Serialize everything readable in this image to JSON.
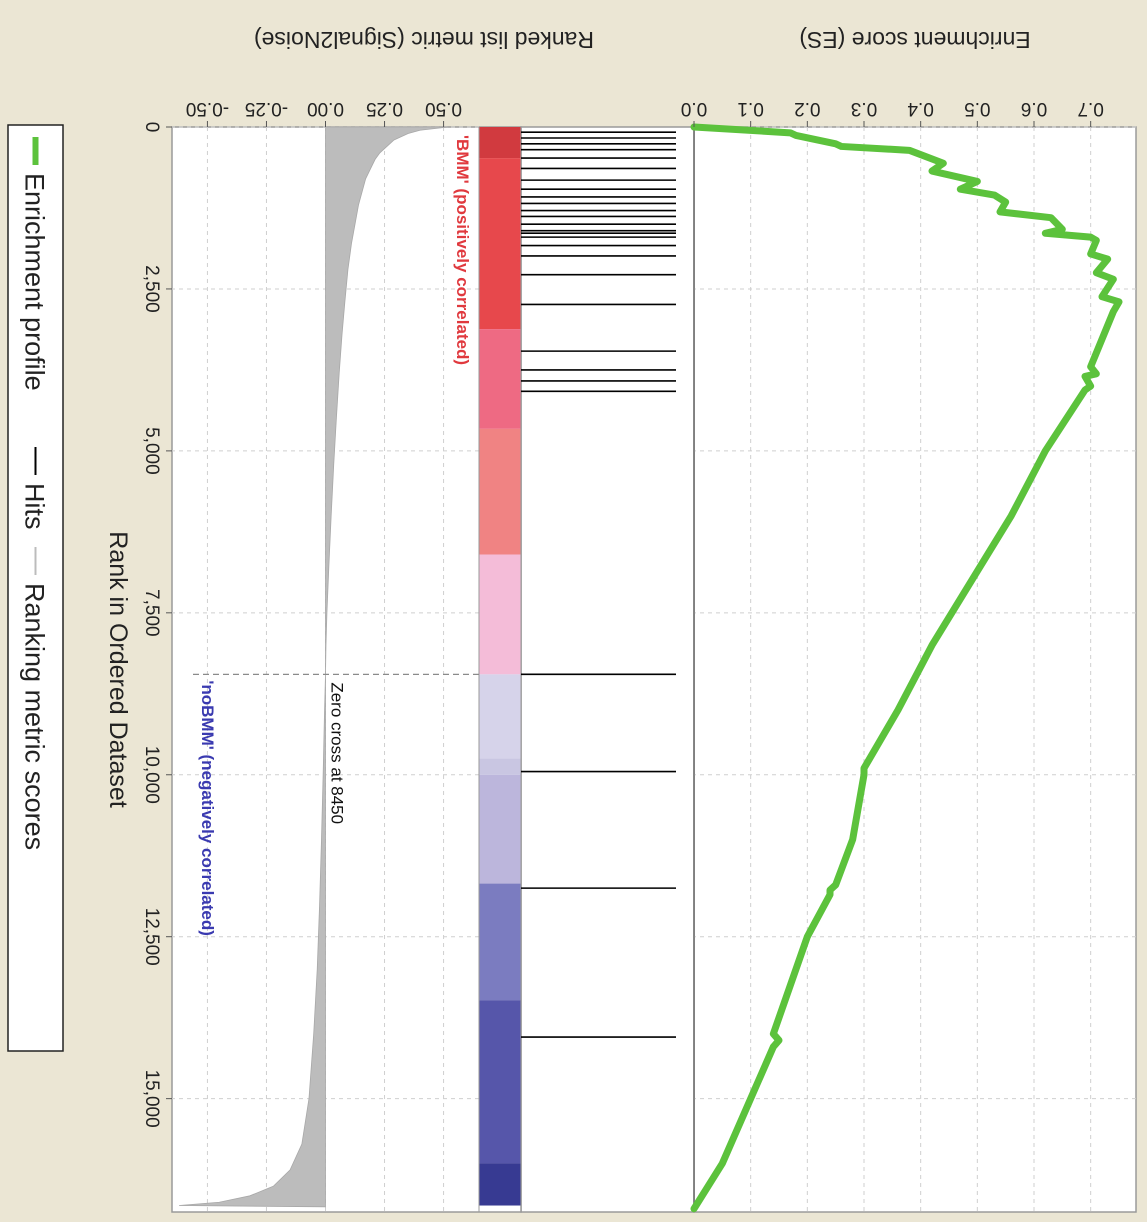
{
  "chart_data": {
    "type": "line",
    "x_label": "Rank in Ordered Dataset",
    "x_range": [
      0,
      16750
    ],
    "x_ticks": [
      0,
      2500,
      5000,
      7500,
      10000,
      12500,
      15000
    ],
    "x_tick_labels": [
      "0",
      "2,500",
      "5,000",
      "7,500",
      "10,000",
      "12,500",
      "15,000"
    ],
    "grid": true,
    "es_panel": {
      "ylabel": "Enrichment score (ES)",
      "ylim": [
        0,
        0.78
      ],
      "y_ticks": [
        0,
        0.1,
        0.2,
        0.3,
        0.4,
        0.5,
        0.6,
        0.7
      ],
      "y_tick_labels": [
        "0.0",
        "0.1",
        "0.2",
        "0.3",
        "0.4",
        "0.5",
        "0.6",
        "0.7"
      ],
      "series_name": "Enrichment profile",
      "color": "#5cc23c",
      "x": [
        0,
        90,
        130,
        260,
        300,
        360,
        560,
        680,
        840,
        960,
        1050,
        1160,
        1310,
        1400,
        1580,
        1640,
        1700,
        1750,
        1960,
        2040,
        2250,
        2350,
        2620,
        2700,
        2850,
        3700,
        3810,
        3850,
        4000,
        4060,
        5000,
        6000,
        7000,
        8000,
        9000,
        9900,
        10000,
        11000,
        11700,
        11780,
        11850,
        12500,
        13500,
        14000,
        14100,
        14200,
        15000,
        16000,
        16700
      ],
      "y": [
        0.0,
        0.17,
        0.18,
        0.25,
        0.26,
        0.38,
        0.44,
        0.42,
        0.5,
        0.47,
        0.53,
        0.55,
        0.54,
        0.63,
        0.65,
        0.62,
        0.7,
        0.71,
        0.7,
        0.73,
        0.71,
        0.74,
        0.72,
        0.75,
        0.74,
        0.7,
        0.71,
        0.69,
        0.7,
        0.69,
        0.62,
        0.56,
        0.49,
        0.42,
        0.36,
        0.3,
        0.3,
        0.28,
        0.25,
        0.24,
        0.24,
        0.2,
        0.16,
        0.14,
        0.15,
        0.14,
        0.1,
        0.05,
        0.0
      ]
    },
    "hits_panel": {
      "series_name": "Hits",
      "color": "#000000",
      "positions": [
        80,
        170,
        260,
        350,
        480,
        640,
        820,
        960,
        1080,
        1180,
        1290,
        1380,
        1500,
        1600,
        1640,
        1700,
        1830,
        1990,
        2280,
        2740,
        3460,
        3750,
        3920,
        4080,
        8450,
        9950,
        11750,
        14050
      ]
    },
    "heat_bar": {
      "segments": [
        {
          "end": 480,
          "color": "#d13a3f"
        },
        {
          "end": 3120,
          "color": "#e7484c"
        },
        {
          "end": 4660,
          "color": "#ee6a83"
        },
        {
          "end": 6600,
          "color": "#f08383"
        },
        {
          "end": 8450,
          "color": "#f4bcd8"
        },
        {
          "end": 9750,
          "color": "#d6d3ea"
        },
        {
          "end": 10000,
          "color": "#c9c6e2"
        },
        {
          "end": 11680,
          "color": "#bcb6dc"
        },
        {
          "end": 13480,
          "color": "#7b7cc0"
        },
        {
          "end": 16000,
          "color": "#5656aa"
        },
        {
          "end": 16650,
          "color": "#373a92"
        }
      ]
    },
    "metric_panel": {
      "ylabel": "Ranked list metric (Signal2Noise)",
      "ylim": [
        -0.65,
        0.65
      ],
      "y_ticks": [
        0.5,
        0.25,
        0.0,
        -0.25,
        -0.5
      ],
      "y_tick_labels": [
        "0.50",
        "0.25",
        "0.00",
        "-0.25",
        "-0.50"
      ],
      "series_name": "Ranking metric scores",
      "fill_color": "#bcbcbc",
      "x": [
        0,
        50,
        100,
        200,
        300,
        400,
        500,
        650,
        800,
        1000,
        1200,
        1500,
        1800,
        2200,
        2700,
        3200,
        3800,
        4500,
        5200,
        6000,
        6800,
        7500,
        8000,
        8450,
        9000,
        10000,
        11000,
        12000,
        13000,
        14000,
        15000,
        15700,
        16100,
        16350,
        16500,
        16600,
        16650,
        16670
      ],
      "y": [
        0.52,
        0.4,
        0.35,
        0.29,
        0.26,
        0.23,
        0.21,
        0.19,
        0.17,
        0.155,
        0.14,
        0.125,
        0.11,
        0.095,
        0.082,
        0.07,
        0.058,
        0.046,
        0.035,
        0.024,
        0.014,
        0.006,
        0.002,
        0.0,
        -0.004,
        -0.01,
        -0.017,
        -0.025,
        -0.035,
        -0.05,
        -0.07,
        -0.1,
        -0.15,
        -0.22,
        -0.32,
        -0.45,
        -0.62,
        0.0
      ],
      "zero_cross_rank": 8450,
      "zero_cross_label": "Zero cross at 8450",
      "positive_label": "'BMM' (positively correlated)",
      "positive_color": "#e0393e",
      "negative_label": "'noBMM' (negatively correlated)",
      "negative_color": "#3a3ab0"
    },
    "legend": {
      "position": "bottom",
      "items": [
        {
          "label": "Enrichment profile",
          "color": "#5cc23c"
        },
        {
          "label": "Hits",
          "color": "#000000"
        },
        {
          "label": "Ranking metric scores",
          "color": "#bcbcbc"
        }
      ]
    }
  }
}
